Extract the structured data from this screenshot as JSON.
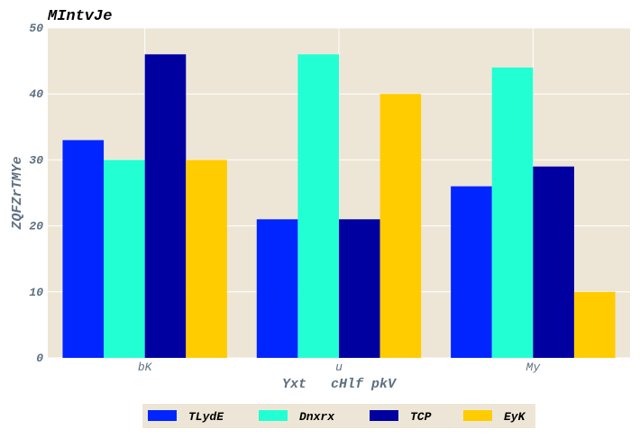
{
  "chart_data": {
    "type": "bar",
    "title": "MIntvJe",
    "xlabel": "Yxt   cHlf pkV",
    "ylabel": "ZQFZrTMYe",
    "categories": [
      "bK",
      "u",
      "My"
    ],
    "ylim": [
      0,
      50
    ],
    "yticks": [
      0,
      10,
      20,
      30,
      40,
      50
    ],
    "grid": true,
    "legend_position": "bottom-center",
    "series": [
      {
        "name": "TLydE",
        "color": "#0025ff",
        "values": [
          33,
          21,
          26
        ]
      },
      {
        "name": "Dnxrx",
        "color": "#22ffd3",
        "values": [
          30,
          46,
          44
        ]
      },
      {
        "name": "TCP",
        "color": "#0000a1",
        "values": [
          46,
          21,
          29
        ]
      },
      {
        "name": "EyK",
        "color": "#ffcc00",
        "values": [
          30,
          40,
          10
        ]
      }
    ]
  },
  "colors": {
    "plot_background": "#ede6d6",
    "grid": "#ffffff",
    "tick_text": "#5e7080"
  }
}
